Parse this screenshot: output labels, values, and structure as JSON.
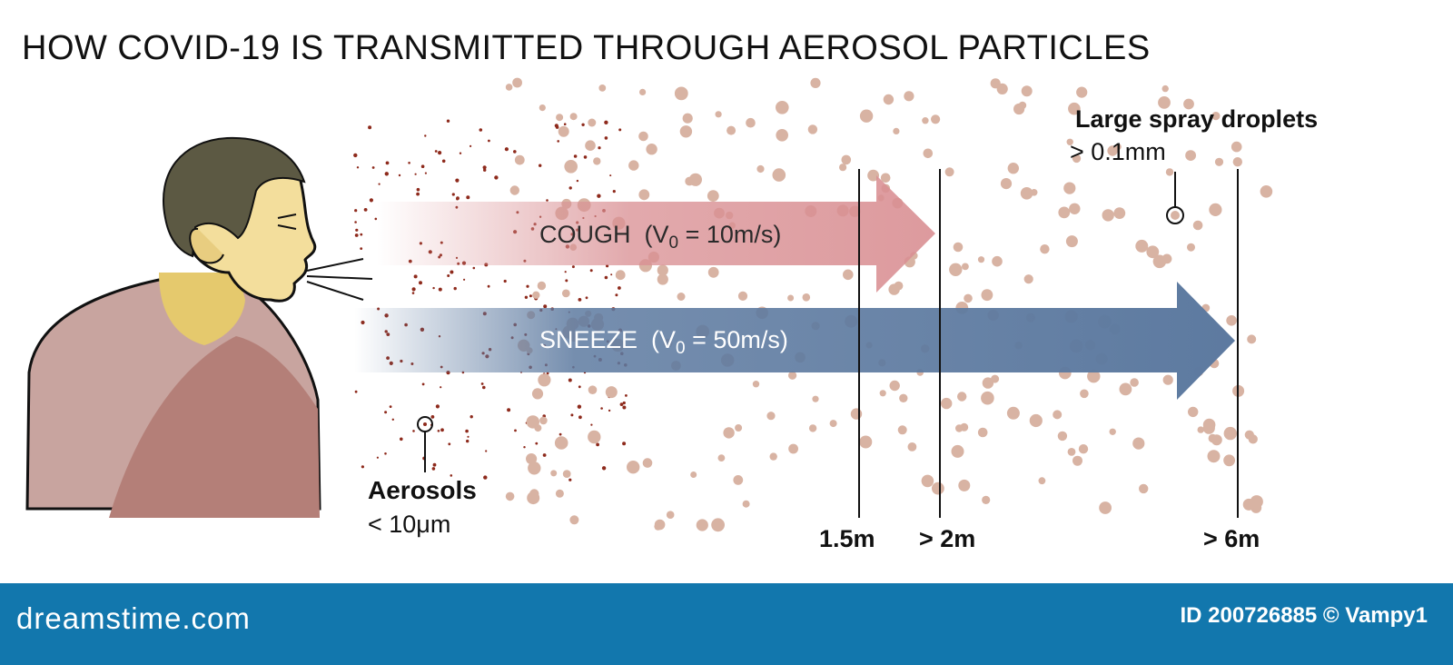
{
  "title": "HOW COVID-19 IS TRANSMITTED THROUGH AEROSOL PARTICLES",
  "cough": {
    "label": "COUGH",
    "v_open": "(V",
    "v_sub": "0",
    "v_rest": " = 10m/s)",
    "color": "#d98f93"
  },
  "sneeze": {
    "label": "SNEEZE",
    "v_open": "(V",
    "v_sub": "0",
    "v_rest": " = 50m/s)",
    "color": "#5d7aa0"
  },
  "aerosols": {
    "name": "Aerosols",
    "size": "< 10μm"
  },
  "droplets": {
    "name": "Large spray droplets",
    "size": "> 0.1mm"
  },
  "distances": [
    "1.5m",
    "> 2m",
    "> 6m"
  ],
  "footer": {
    "brand": "dreamstime.com",
    "stock_id": "ID 200726885 © Vampy1",
    "color": "#1277ad"
  },
  "colors": {
    "skin": "#f3de9c",
    "skin_shadow": "#e5c96d",
    "hair": "#5c5943",
    "shirt_light": "#c8a49f",
    "shirt_dark": "#b47f78",
    "droplet": "#d8b3a3",
    "aerosol": "#8e2a1c"
  }
}
